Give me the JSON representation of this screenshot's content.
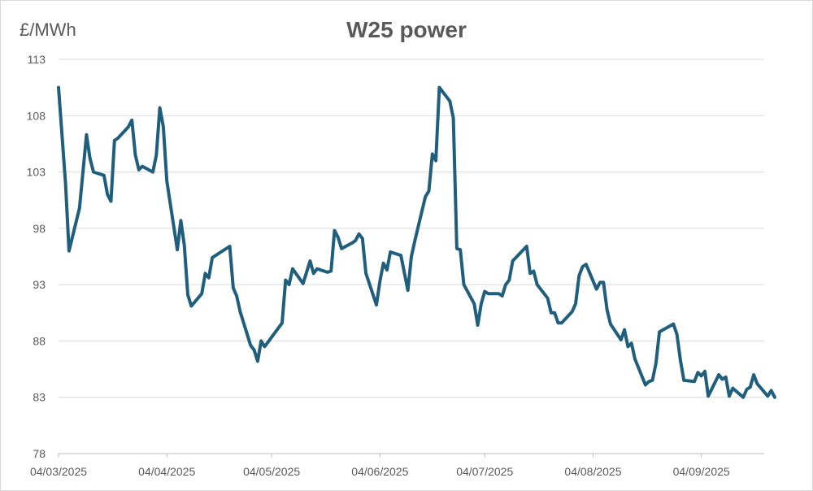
{
  "chart_data": {
    "type": "line",
    "title": "W25 power",
    "ylabel": "£/MWh",
    "xlabel": "",
    "ylim": [
      78,
      113
    ],
    "yticks": [
      78,
      83,
      88,
      93,
      98,
      103,
      108,
      113
    ],
    "xlim": [
      "2025-03-04",
      "2025-09-22"
    ],
    "xticks": [
      {
        "date": "2025-03-04",
        "label": "04/03/2025"
      },
      {
        "date": "2025-04-04",
        "label": "04/04/2025"
      },
      {
        "date": "2025-05-04",
        "label": "04/05/2025"
      },
      {
        "date": "2025-06-04",
        "label": "04/06/2025"
      },
      {
        "date": "2025-07-04",
        "label": "04/07/2025"
      },
      {
        "date": "2025-08-04",
        "label": "04/08/2025"
      },
      {
        "date": "2025-09-04",
        "label": "04/09/2025"
      }
    ],
    "grid": true,
    "legend": "none",
    "series": [
      {
        "color": "#1f5f7d",
        "points": [
          [
            "2025-03-04",
            110.5
          ],
          [
            "2025-03-06",
            102.0
          ],
          [
            "2025-03-07",
            96.0
          ],
          [
            "2025-03-10",
            99.8
          ],
          [
            "2025-03-12",
            106.3
          ],
          [
            "2025-03-13",
            104.2
          ],
          [
            "2025-03-14",
            103.0
          ],
          [
            "2025-03-17",
            102.7
          ],
          [
            "2025-03-18",
            101.0
          ],
          [
            "2025-03-19",
            100.4
          ],
          [
            "2025-03-20",
            105.8
          ],
          [
            "2025-03-21",
            106.0
          ],
          [
            "2025-03-24",
            107.0
          ],
          [
            "2025-03-25",
            107.6
          ],
          [
            "2025-03-26",
            104.5
          ],
          [
            "2025-03-27",
            103.2
          ],
          [
            "2025-03-28",
            103.5
          ],
          [
            "2025-03-31",
            103.0
          ],
          [
            "2025-04-01",
            104.5
          ],
          [
            "2025-04-02",
            108.7
          ],
          [
            "2025-04-03",
            107.0
          ],
          [
            "2025-04-04",
            102.2
          ],
          [
            "2025-04-07",
            96.1
          ],
          [
            "2025-04-08",
            98.7
          ],
          [
            "2025-04-09",
            96.5
          ],
          [
            "2025-04-10",
            92.1
          ],
          [
            "2025-04-11",
            91.1
          ],
          [
            "2025-04-14",
            92.2
          ],
          [
            "2025-04-15",
            94.0
          ],
          [
            "2025-04-16",
            93.6
          ],
          [
            "2025-04-17",
            95.4
          ],
          [
            "2025-04-22",
            96.4
          ],
          [
            "2025-04-23",
            92.7
          ],
          [
            "2025-04-24",
            92.0
          ],
          [
            "2025-04-25",
            90.6
          ],
          [
            "2025-04-28",
            87.6
          ],
          [
            "2025-04-29",
            87.2
          ],
          [
            "2025-04-30",
            86.2
          ],
          [
            "2025-05-01",
            88.0
          ],
          [
            "2025-05-02",
            87.5
          ],
          [
            "2025-05-07",
            89.6
          ],
          [
            "2025-05-08",
            93.4
          ],
          [
            "2025-05-09",
            93.0
          ],
          [
            "2025-05-10",
            94.4
          ],
          [
            "2025-05-13",
            93.1
          ],
          [
            "2025-05-15",
            95.1
          ],
          [
            "2025-05-16",
            94.0
          ],
          [
            "2025-05-17",
            94.4
          ],
          [
            "2025-05-20",
            94.1
          ],
          [
            "2025-05-21",
            94.2
          ],
          [
            "2025-05-22",
            97.8
          ],
          [
            "2025-05-23",
            97.2
          ],
          [
            "2025-05-24",
            96.2
          ],
          [
            "2025-05-27",
            96.7
          ],
          [
            "2025-05-28",
            96.9
          ],
          [
            "2025-05-29",
            97.5
          ],
          [
            "2025-05-30",
            97.1
          ],
          [
            "2025-05-31",
            94.0
          ],
          [
            "2025-06-03",
            91.2
          ],
          [
            "2025-06-04",
            93.3
          ],
          [
            "2025-06-05",
            94.9
          ],
          [
            "2025-06-06",
            94.3
          ],
          [
            "2025-06-07",
            95.9
          ],
          [
            "2025-06-10",
            95.6
          ],
          [
            "2025-06-12",
            92.5
          ],
          [
            "2025-06-13",
            95.5
          ],
          [
            "2025-06-14",
            96.9
          ],
          [
            "2025-06-17",
            100.8
          ],
          [
            "2025-06-18",
            101.3
          ],
          [
            "2025-06-19",
            104.6
          ],
          [
            "2025-06-20",
            104.0
          ],
          [
            "2025-06-21",
            110.5
          ],
          [
            "2025-06-24",
            109.3
          ],
          [
            "2025-06-25",
            107.8
          ],
          [
            "2025-06-26",
            96.2
          ],
          [
            "2025-06-27",
            96.1
          ],
          [
            "2025-06-28",
            93.0
          ],
          [
            "2025-07-01",
            91.3
          ],
          [
            "2025-07-02",
            89.4
          ],
          [
            "2025-07-03",
            91.3
          ],
          [
            "2025-07-04",
            92.4
          ],
          [
            "2025-07-05",
            92.2
          ],
          [
            "2025-07-08",
            92.2
          ],
          [
            "2025-07-09",
            92.0
          ],
          [
            "2025-07-10",
            93.0
          ],
          [
            "2025-07-11",
            93.4
          ],
          [
            "2025-07-12",
            95.1
          ],
          [
            "2025-07-16",
            96.4
          ],
          [
            "2025-07-17",
            94.0
          ],
          [
            "2025-07-18",
            94.2
          ],
          [
            "2025-07-19",
            93.0
          ],
          [
            "2025-07-22",
            91.8
          ],
          [
            "2025-07-23",
            90.5
          ],
          [
            "2025-07-24",
            90.5
          ],
          [
            "2025-07-25",
            89.6
          ],
          [
            "2025-07-26",
            89.6
          ],
          [
            "2025-07-29",
            90.6
          ],
          [
            "2025-07-30",
            91.3
          ],
          [
            "2025-07-31",
            93.8
          ],
          [
            "2025-08-01",
            94.6
          ],
          [
            "2025-08-02",
            94.8
          ],
          [
            "2025-08-05",
            92.6
          ],
          [
            "2025-08-06",
            93.2
          ],
          [
            "2025-08-07",
            93.2
          ],
          [
            "2025-08-08",
            90.8
          ],
          [
            "2025-08-09",
            89.5
          ],
          [
            "2025-08-12",
            88.1
          ],
          [
            "2025-08-13",
            89.0
          ],
          [
            "2025-08-14",
            87.5
          ],
          [
            "2025-08-15",
            87.8
          ],
          [
            "2025-08-16",
            86.4
          ],
          [
            "2025-08-19",
            84.1
          ],
          [
            "2025-08-20",
            84.4
          ],
          [
            "2025-08-21",
            84.5
          ],
          [
            "2025-08-22",
            86.0
          ],
          [
            "2025-08-23",
            88.8
          ],
          [
            "2025-08-27",
            89.5
          ],
          [
            "2025-08-28",
            88.6
          ],
          [
            "2025-08-29",
            86.3
          ],
          [
            "2025-08-30",
            84.5
          ],
          [
            "2025-09-02",
            84.4
          ],
          [
            "2025-09-03",
            85.2
          ],
          [
            "2025-09-04",
            84.9
          ],
          [
            "2025-09-05",
            85.3
          ],
          [
            "2025-09-06",
            83.1
          ],
          [
            "2025-09-09",
            85.0
          ],
          [
            "2025-09-10",
            84.6
          ],
          [
            "2025-09-11",
            84.8
          ],
          [
            "2025-09-12",
            83.1
          ],
          [
            "2025-09-13",
            83.8
          ],
          [
            "2025-09-16",
            83.0
          ],
          [
            "2025-09-17",
            83.7
          ],
          [
            "2025-09-18",
            83.9
          ],
          [
            "2025-09-19",
            85.0
          ],
          [
            "2025-09-20",
            84.2
          ],
          [
            "2025-09-23",
            83.1
          ],
          [
            "2025-09-24",
            83.6
          ],
          [
            "2025-09-25",
            83.0
          ]
        ]
      }
    ]
  }
}
